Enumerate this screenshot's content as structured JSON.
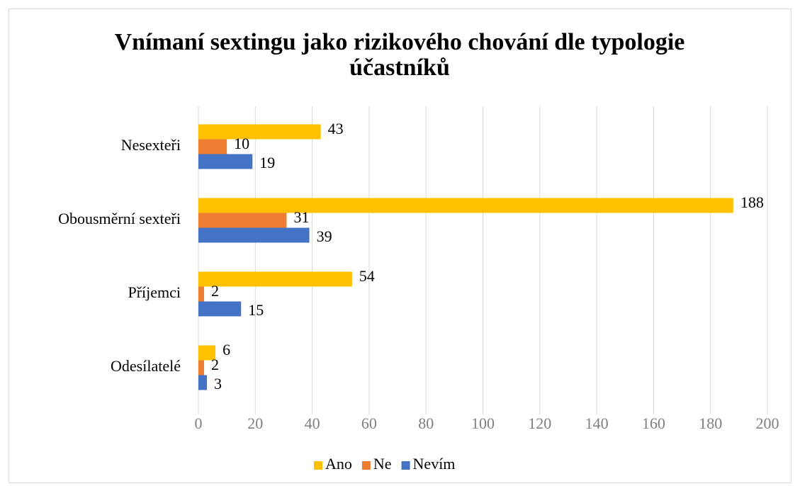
{
  "chart_data": {
    "type": "hbar",
    "title": "Vnímaní sextingu jako rizikového chování dle typologie účastníků",
    "categories": [
      "Nesexteři",
      "Obousměrní sexteři",
      "Příjemci",
      "Odesílatelé"
    ],
    "series": [
      {
        "name": "Ano",
        "color": "#FFC000",
        "values": [
          43,
          188,
          54,
          6
        ]
      },
      {
        "name": "Ne",
        "color": "#ED7D31",
        "values": [
          10,
          31,
          2,
          2
        ]
      },
      {
        "name": "Nevím",
        "color": "#4472C4",
        "values": [
          19,
          39,
          15,
          3
        ]
      }
    ],
    "xlim": [
      0,
      200
    ],
    "xticks": [
      0,
      20,
      40,
      60,
      80,
      100,
      120,
      140,
      160,
      180,
      200
    ],
    "grid": true,
    "legend": "bottom"
  }
}
